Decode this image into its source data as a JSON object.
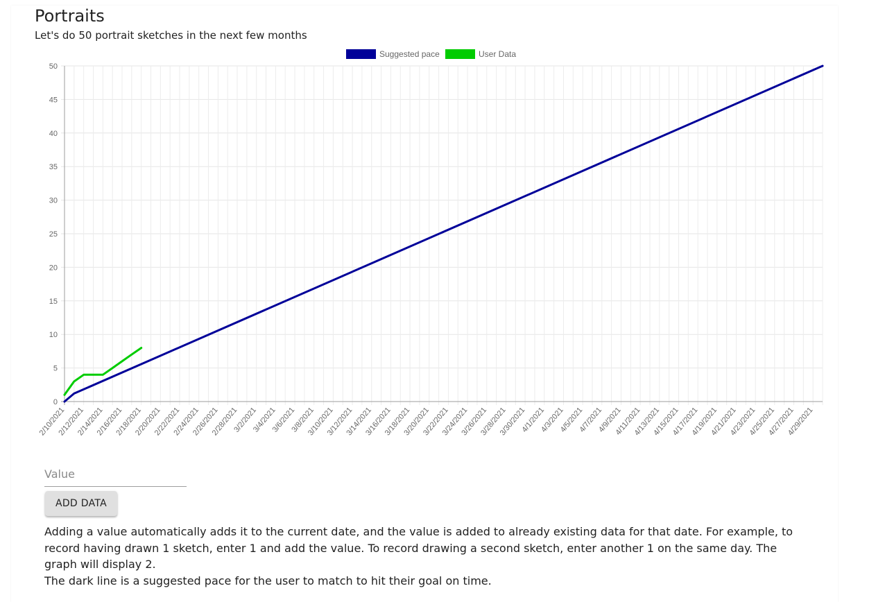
{
  "page": {
    "title": "Portraits",
    "subtitle": "Let's do 50 portrait sketches in the next few months"
  },
  "form": {
    "value_placeholder": "Value",
    "add_button_label": "ADD DATA"
  },
  "description": {
    "line1": "Adding a value automatically adds it to the current date, and the value is added to already existing data for that date. For example, to record having drawn 1 sketch, enter 1 and add the value. To record drawing a second sketch, enter another 1 on the same day. The graph will display 2.",
    "line2": "The dark line is a suggested pace for the user to match to hit their goal on time."
  },
  "chart_data": {
    "type": "line",
    "x_labels": [
      "2/10/2021",
      "2/12/2021",
      "2/14/2021",
      "2/16/2021",
      "2/18/2021",
      "2/20/2021",
      "2/22/2021",
      "2/24/2021",
      "2/26/2021",
      "2/28/2021",
      "3/2/2021",
      "3/4/2021",
      "3/6/2021",
      "3/8/2021",
      "3/10/2021",
      "3/12/2021",
      "3/14/2021",
      "3/16/2021",
      "3/18/2021",
      "3/20/2021",
      "3/22/2021",
      "3/24/2021",
      "3/26/2021",
      "3/28/2021",
      "3/30/2021",
      "4/1/2021",
      "4/3/2021",
      "4/5/2021",
      "4/7/2021",
      "4/9/2021",
      "4/11/2021",
      "4/13/2021",
      "4/15/2021",
      "4/17/2021",
      "4/19/2021",
      "4/21/2021",
      "4/23/2021",
      "4/25/2021",
      "4/27/2021",
      "4/29/2021"
    ],
    "x_start": "2/10/2021",
    "x_end": "4/29/2021",
    "ylim": [
      0,
      50
    ],
    "y_ticks": [
      0,
      5,
      10,
      15,
      20,
      25,
      30,
      35,
      40,
      45,
      50
    ],
    "grid": true,
    "legend_position": "top-center",
    "series": [
      {
        "name": "Suggested pace",
        "color": "#000099",
        "points": [
          [
            "2/10/2021",
            0
          ],
          [
            "2/11/2021",
            1.2
          ],
          [
            "4/30/2021",
            50
          ]
        ]
      },
      {
        "name": "User Data",
        "color": "#00cc00",
        "points": [
          [
            "2/10/2021",
            1
          ],
          [
            "2/11/2021",
            3
          ],
          [
            "2/12/2021",
            4
          ],
          [
            "2/13/2021",
            4
          ],
          [
            "2/14/2021",
            4
          ],
          [
            "2/15/2021",
            5
          ],
          [
            "2/16/2021",
            6
          ],
          [
            "2/17/2021",
            7
          ],
          [
            "2/18/2021",
            8
          ]
        ]
      }
    ]
  }
}
